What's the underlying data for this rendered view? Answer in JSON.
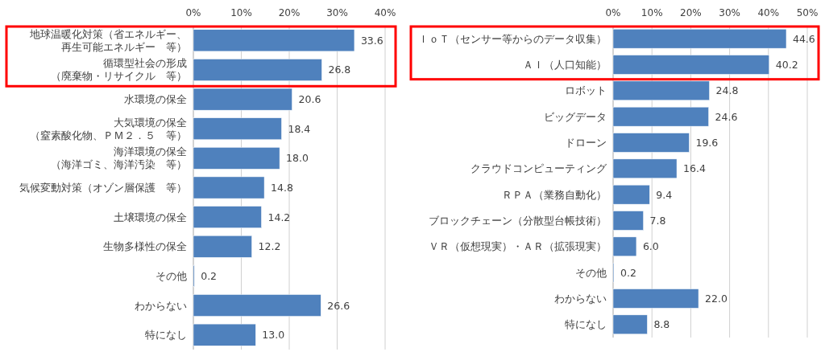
{
  "chart_data": [
    {
      "type": "bar",
      "orientation": "horizontal",
      "grid": "x",
      "color": "#4f81bd",
      "categories": [
        "地球温暖化対策（省エネルギー、再生可能エネルギー　等）",
        "循環型社会の形成（廃棄物・リサイクル　等）",
        "水環境の保全",
        "大気環境の保全（窒素酸化物、ＰＭ２．５　等）",
        "海洋環境の保全（海洋ゴミ、海洋汚染　等）",
        "気候変動対策（オゾン層保護　等）",
        "土壌環境の保全",
        "生物多様性の保全",
        "その他",
        "わからない",
        "特になし"
      ],
      "values": [
        33.6,
        26.8,
        20.6,
        18.4,
        18.0,
        14.8,
        14.2,
        12.2,
        0.2,
        26.6,
        13.0
      ],
      "value_labels": [
        "33.6",
        "26.8",
        "20.6",
        "18.4",
        "18.0",
        "14.8",
        "14.2",
        "12.2",
        "0.2",
        "26.6",
        "13.0"
      ],
      "xlim": [
        0,
        40
      ],
      "xticks": [
        {
          "value": 0,
          "label": "0%"
        },
        {
          "value": 10,
          "label": "10%"
        },
        {
          "value": 20,
          "label": "20%"
        },
        {
          "value": 30,
          "label": "30%"
        },
        {
          "value": 40,
          "label": "40%"
        }
      ]
    },
    {
      "type": "bar",
      "orientation": "horizontal",
      "grid": "x",
      "color": "#4f81bd",
      "categories": [
        "ＩｏＴ（センサー等からのデータ収集）",
        "ＡＩ（人口知能）",
        "ロボット",
        "ビッグデータ",
        "ドローン",
        "クラウドコンピューティング",
        "ＲＰＡ（業務自動化）",
        "ブロックチェーン（分散型台帳技術）",
        "ＶＲ（仮想現実）・ＡＲ（拡張現実）",
        "その他",
        "わからない",
        "特になし"
      ],
      "values": [
        44.6,
        40.2,
        24.8,
        24.6,
        19.6,
        16.4,
        9.4,
        7.8,
        6.0,
        0.2,
        22.0,
        8.8
      ],
      "value_labels": [
        "44.6",
        "40.2",
        "24.8",
        "24.6",
        "19.6",
        "16.4",
        "9.4",
        "7.8",
        "6.0",
        "0.2",
        "22.0",
        "8.8"
      ],
      "xlim": [
        0,
        50
      ],
      "xticks": [
        {
          "value": 0,
          "label": "0%"
        },
        {
          "value": 10,
          "label": "10%"
        },
        {
          "value": 20,
          "label": "20%"
        },
        {
          "value": 30,
          "label": "30%"
        },
        {
          "value": 40,
          "label": "40%"
        },
        {
          "value": 50,
          "label": "50%"
        }
      ]
    }
  ]
}
